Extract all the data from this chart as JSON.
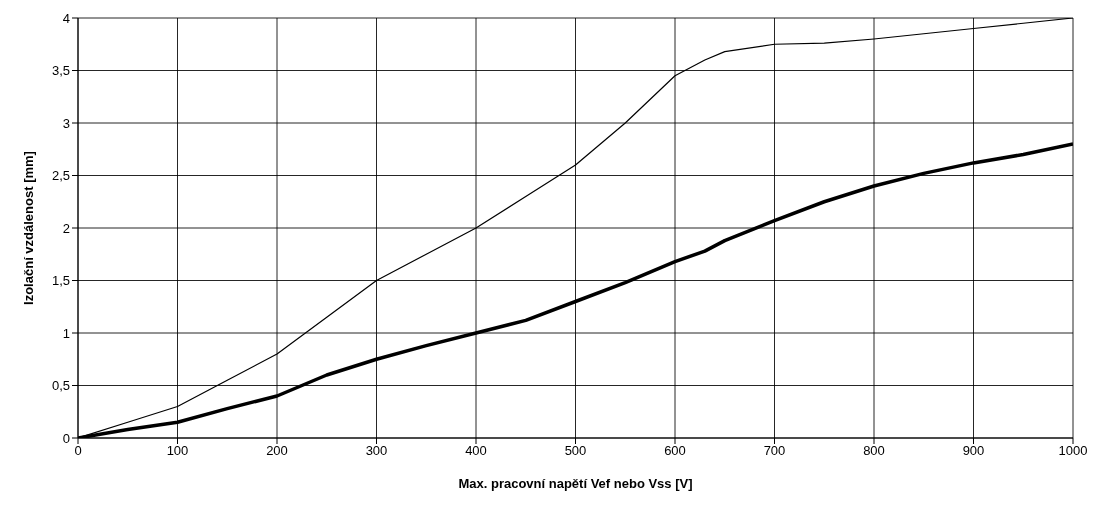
{
  "chart_data": {
    "type": "line",
    "xlabel": "Max. pracovní napětí Vef nebo Vss [V]",
    "ylabel": "Izolační vzdálenost [mm]",
    "xlim": [
      0,
      1000
    ],
    "xticks": [
      0,
      100,
      200,
      300,
      400,
      500,
      600,
      700,
      800,
      900,
      1000
    ],
    "ylim": [
      0,
      4
    ],
    "yticks": [
      0,
      {
        "value": 0.5,
        "label": "0,5"
      },
      1,
      {
        "value": 1.5,
        "label": "1,5"
      },
      2,
      {
        "value": 2.5,
        "label": "2,5"
      },
      3,
      {
        "value": 3.5,
        "label": "3,5"
      },
      4
    ],
    "grid": true,
    "marker": "none",
    "line_style": "solid",
    "x": [
      0,
      50,
      100,
      150,
      200,
      250,
      300,
      350,
      400,
      450,
      500,
      550,
      600,
      630,
      650,
      700,
      750,
      800,
      850,
      900,
      950,
      1000
    ],
    "series": [
      {
        "color": "#000000",
        "values": [
          0,
          0.15,
          0.3,
          0.55,
          0.8,
          1.15,
          1.5,
          1.75,
          2.0,
          2.3,
          2.6,
          3.0,
          3.45,
          3.6,
          3.68,
          3.75,
          3.76,
          3.8,
          3.85,
          3.9,
          3.95,
          4.0
        ]
      },
      {
        "color": "#000000",
        "values": [
          0,
          0.08,
          0.15,
          0.28,
          0.4,
          0.6,
          0.75,
          0.88,
          1.0,
          1.12,
          1.3,
          1.48,
          1.68,
          1.78,
          1.88,
          2.07,
          2.25,
          2.4,
          2.52,
          2.62,
          2.7,
          2.8
        ]
      }
    ]
  }
}
